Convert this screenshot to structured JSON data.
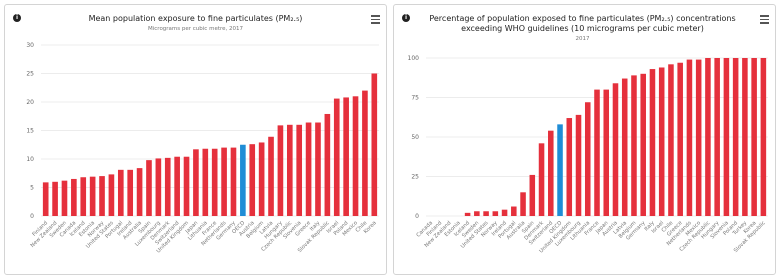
{
  "chart_data": [
    {
      "type": "bar",
      "title": "Mean population exposure to fine particulates (PM₂.₅)",
      "subtitle": "Micrograms per cubic metre, 2017",
      "categories": [
        "Finland",
        "New Zealand",
        "Sweden",
        "Canada",
        "Iceland",
        "Estonia",
        "Norway",
        "United States",
        "Portugal",
        "Ireland",
        "Australia",
        "Spain",
        "Luxembourg",
        "Denmark",
        "Switzerland",
        "United Kingdom",
        "Japan",
        "Lithuania",
        "France",
        "Netherlands",
        "Germany",
        "OECD",
        "Austria",
        "Belgium",
        "Latvia",
        "Hungary",
        "Czech Republic",
        "Slovenia",
        "Greece",
        "Italy",
        "Slovak Republic",
        "Israel",
        "Poland",
        "Mexico",
        "Chile",
        "Korea"
      ],
      "values": [
        5.9,
        6.0,
        6.2,
        6.5,
        6.8,
        6.9,
        7.0,
        7.3,
        8.1,
        8.1,
        8.4,
        9.8,
        10.1,
        10.2,
        10.4,
        10.4,
        11.7,
        11.8,
        11.8,
        12.0,
        12.0,
        12.5,
        12.6,
        12.9,
        13.9,
        15.9,
        16.0,
        16.0,
        16.4,
        16.4,
        17.9,
        20.6,
        20.8,
        21.0,
        22.0,
        25.0
      ],
      "colors": [
        "#e5303c",
        "#e5303c",
        "#e5303c",
        "#e5303c",
        "#e5303c",
        "#e5303c",
        "#e5303c",
        "#e5303c",
        "#e5303c",
        "#e5303c",
        "#e5303c",
        "#e5303c",
        "#e5303c",
        "#e5303c",
        "#e5303c",
        "#e5303c",
        "#e5303c",
        "#e5303c",
        "#e5303c",
        "#e5303c",
        "#e5303c",
        "#1f8dd6",
        "#e5303c",
        "#e5303c",
        "#e5303c",
        "#e5303c",
        "#e5303c",
        "#e5303c",
        "#e5303c",
        "#e5303c",
        "#e5303c",
        "#e5303c",
        "#e5303c",
        "#e5303c",
        "#e5303c",
        "#e5303c"
      ],
      "ylim": [
        0,
        30
      ],
      "yticks": [
        0,
        5,
        10,
        15,
        20,
        25,
        30
      ],
      "grid": true
    },
    {
      "type": "bar",
      "title": "Percentage of population exposed to fine particulates (PM₂.₅) concentrations exceeding WHO guidelines (10 micrograms per cubic meter)",
      "subtitle": "2017",
      "categories": [
        "Canada",
        "Finland",
        "New Zealand",
        "Estonia",
        "Iceland",
        "Sweden",
        "United States",
        "Norway",
        "Ireland",
        "Portugal",
        "Australia",
        "Spain",
        "Denmark",
        "Switzerland",
        "OECD",
        "United Kingdom",
        "Luxembourg",
        "Lithuania",
        "France",
        "Japan",
        "Austria",
        "Latvia",
        "Belgium",
        "Germany",
        "Italy",
        "Israel",
        "Chile",
        "Greece",
        "Netherlands",
        "Mexico",
        "Czech Republic",
        "Hungary",
        "Slovenia",
        "Poland",
        "Turkey",
        "Korea",
        "Slovak Republic"
      ],
      "values": [
        0,
        0,
        0,
        0,
        2,
        3,
        3,
        3,
        4,
        6,
        15,
        26,
        46,
        54,
        58,
        62,
        64,
        72,
        80,
        80,
        84,
        87,
        89,
        90,
        93,
        94,
        96,
        97,
        99,
        99,
        100,
        100,
        100,
        100,
        100,
        100,
        100
      ],
      "colors": [
        "#e5303c",
        "#e5303c",
        "#e5303c",
        "#e5303c",
        "#e5303c",
        "#e5303c",
        "#e5303c",
        "#e5303c",
        "#e5303c",
        "#e5303c",
        "#e5303c",
        "#e5303c",
        "#e5303c",
        "#e5303c",
        "#1f8dd6",
        "#e5303c",
        "#e5303c",
        "#e5303c",
        "#e5303c",
        "#e5303c",
        "#e5303c",
        "#e5303c",
        "#e5303c",
        "#e5303c",
        "#e5303c",
        "#e5303c",
        "#e5303c",
        "#e5303c",
        "#e5303c",
        "#e5303c",
        "#e5303c",
        "#e5303c",
        "#e5303c",
        "#e5303c",
        "#e5303c",
        "#e5303c",
        "#e5303c"
      ],
      "ylim": [
        0,
        100
      ],
      "yticks": [
        0,
        25,
        50,
        75,
        100
      ],
      "grid": true
    }
  ]
}
